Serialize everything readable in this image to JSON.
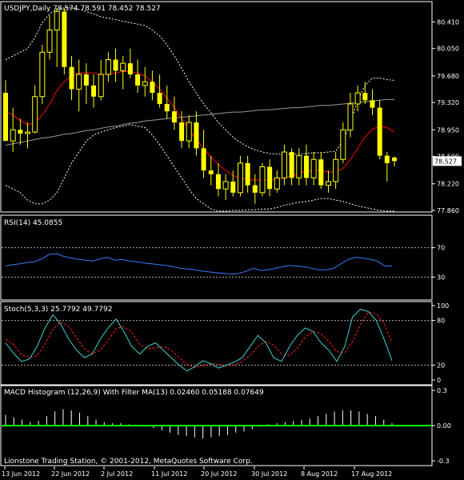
{
  "footer": "Lionstone Trading Station, © 2001-2012, MetaQuotes Software Corp.",
  "colors": {
    "candle": "#ffff00",
    "ma": "#ff0000",
    "ma_long": "#9a9a9a",
    "bollinger": "#ffffff",
    "rsi": "#3a78ff",
    "stoch_main": "#40d0d0",
    "stoch_signal": "#ff2020",
    "macd": "#ffffff",
    "macd_filter": "#00ff00",
    "current_price_bg": "#ffffff"
  },
  "chart_data": [
    {
      "type": "candlestick",
      "title": "USDJPY,Daily  78.574 78.591 78.452 78.527",
      "symbol": "USDJPY",
      "timeframe": "Daily",
      "ohlc_header": [
        78.574,
        78.591,
        78.452,
        78.527
      ],
      "current_price": "78.527",
      "ylim": [
        77.86,
        80.62
      ],
      "yticks": [
        "80.410",
        "80.050",
        "79.680",
        "79.320",
        "78.950",
        "78.590",
        "78.220",
        "77.860"
      ],
      "xticks": [
        "13 Jun 2012",
        "22 Jun 2012",
        "2 Jul 2012",
        "11 Jul 2012",
        "20 Jul 2012",
        "30 Jul 2012",
        "8 Aug 2012",
        "17 Aug 2012"
      ],
      "candles": [
        [
          79.45,
          79.62,
          78.8,
          78.8
        ],
        [
          78.8,
          79.25,
          78.65,
          78.95
        ],
        [
          78.95,
          79.1,
          78.75,
          78.9
        ],
        [
          78.9,
          79.05,
          78.7,
          78.92
        ],
        [
          78.92,
          79.55,
          78.9,
          79.4
        ],
        [
          79.4,
          80.1,
          79.3,
          80.0
        ],
        [
          80.0,
          80.5,
          79.9,
          80.3
        ],
        [
          80.3,
          80.6,
          79.8,
          80.55
        ],
        [
          80.55,
          80.6,
          79.7,
          79.8
        ],
        [
          79.8,
          79.95,
          79.35,
          79.5
        ],
        [
          79.5,
          79.9,
          79.2,
          79.7
        ],
        [
          79.7,
          79.85,
          79.3,
          79.55
        ],
        [
          79.55,
          79.7,
          79.25,
          79.4
        ],
        [
          79.4,
          79.9,
          79.35,
          79.7
        ],
        [
          79.7,
          80.0,
          79.6,
          79.9
        ],
        [
          79.9,
          80.05,
          79.6,
          79.75
        ],
        [
          79.75,
          79.95,
          79.5,
          79.85
        ],
        [
          79.85,
          80.05,
          79.65,
          79.7
        ],
        [
          79.7,
          79.9,
          79.45,
          79.55
        ],
        [
          79.55,
          79.8,
          79.4,
          79.6
        ],
        [
          79.6,
          79.75,
          79.35,
          79.45
        ],
        [
          79.45,
          79.7,
          79.25,
          79.3
        ],
        [
          79.3,
          79.55,
          79.1,
          79.2
        ],
        [
          79.2,
          79.4,
          78.95,
          79.05
        ],
        [
          79.05,
          79.2,
          78.7,
          78.8
        ],
        [
          78.8,
          79.15,
          78.7,
          79.05
        ],
        [
          79.05,
          79.2,
          78.6,
          78.7
        ],
        [
          78.7,
          78.95,
          78.3,
          78.4
        ],
        [
          78.4,
          78.6,
          78.2,
          78.35
        ],
        [
          78.35,
          78.5,
          78.05,
          78.15
        ],
        [
          78.15,
          78.35,
          78.0,
          78.25
        ],
        [
          78.25,
          78.4,
          78.05,
          78.1
        ],
        [
          78.1,
          78.6,
          78.05,
          78.5
        ],
        [
          78.5,
          78.6,
          78.1,
          78.2
        ],
        [
          78.2,
          78.35,
          77.95,
          78.1
        ],
        [
          78.1,
          78.5,
          78.05,
          78.45
        ],
        [
          78.45,
          78.55,
          78.05,
          78.15
        ],
        [
          78.15,
          78.4,
          78.1,
          78.3
        ],
        [
          78.3,
          78.75,
          78.2,
          78.65
        ],
        [
          78.65,
          78.7,
          78.2,
          78.3
        ],
        [
          78.3,
          78.7,
          78.2,
          78.6
        ],
        [
          78.6,
          78.75,
          78.2,
          78.3
        ],
        [
          78.3,
          78.65,
          78.2,
          78.55
        ],
        [
          78.55,
          78.65,
          78.15,
          78.2
        ],
        [
          78.2,
          78.4,
          78.1,
          78.25
        ],
        [
          78.25,
          78.65,
          78.15,
          78.55
        ],
        [
          78.55,
          79.05,
          78.5,
          78.95
        ],
        [
          78.95,
          79.45,
          78.85,
          79.3
        ],
        [
          79.3,
          79.55,
          79.2,
          79.45
        ],
        [
          79.45,
          79.6,
          79.3,
          79.35
        ],
        [
          79.35,
          79.5,
          79.15,
          79.25
        ],
        [
          79.25,
          79.35,
          78.55,
          78.6
        ],
        [
          78.6,
          78.65,
          78.25,
          78.5
        ],
        [
          78.574,
          78.591,
          78.452,
          78.527
        ]
      ],
      "ma_short": [
        79.2,
        79.15,
        79.08,
        79.02,
        79.05,
        79.15,
        79.3,
        79.48,
        79.6,
        79.68,
        79.72,
        79.72,
        79.72,
        79.7,
        79.7,
        79.72,
        79.74,
        79.74,
        79.72,
        79.68,
        79.6,
        79.5,
        79.38,
        79.25,
        79.1,
        78.95,
        78.82,
        78.7,
        78.58,
        78.48,
        78.4,
        78.33,
        78.3,
        78.28,
        78.27,
        78.27,
        78.27,
        78.28,
        78.3,
        78.33,
        78.36,
        78.39,
        78.4,
        78.4,
        78.38,
        78.38,
        78.43,
        78.55,
        78.7,
        78.85,
        78.96,
        79.0,
        78.98,
        78.92
      ],
      "ma_long": [
        78.74,
        78.76,
        78.78,
        78.8,
        78.82,
        78.84,
        78.85,
        78.87,
        78.89,
        78.9,
        78.92,
        78.94,
        78.95,
        78.97,
        78.99,
        79.0,
        79.02,
        79.04,
        79.05,
        79.07,
        79.08,
        79.09,
        79.1,
        79.11,
        79.12,
        79.13,
        79.14,
        79.15,
        79.16,
        79.17,
        79.18,
        79.19,
        79.19,
        79.2,
        79.21,
        79.22,
        79.22,
        79.23,
        79.24,
        79.25,
        79.25,
        79.26,
        79.27,
        79.28,
        79.28,
        79.29,
        79.3,
        79.31,
        79.32,
        79.33,
        79.34,
        79.35,
        79.36,
        79.36
      ],
      "bb_upper": [
        79.9,
        79.95,
        80.0,
        80.05,
        80.2,
        80.4,
        80.52,
        80.58,
        80.6,
        80.6,
        80.58,
        80.55,
        80.52,
        80.48,
        80.46,
        80.44,
        80.42,
        80.4,
        80.38,
        80.36,
        80.3,
        80.22,
        80.1,
        79.95,
        79.78,
        79.6,
        79.45,
        79.3,
        79.18,
        79.05,
        78.95,
        78.85,
        78.78,
        78.72,
        78.68,
        78.65,
        78.63,
        78.62,
        78.62,
        78.62,
        78.62,
        78.63,
        78.64,
        78.64,
        78.65,
        78.66,
        78.8,
        79.05,
        79.35,
        79.55,
        79.65,
        79.65,
        79.63,
        79.62
      ],
      "bb_lower": [
        78.2,
        78.15,
        78.1,
        78.0,
        77.95,
        77.95,
        78.0,
        78.1,
        78.3,
        78.5,
        78.65,
        78.8,
        78.88,
        78.92,
        78.95,
        78.98,
        79.0,
        79.02,
        79.0,
        78.98,
        78.88,
        78.75,
        78.6,
        78.45,
        78.3,
        78.15,
        78.02,
        77.95,
        77.88,
        77.85,
        77.85,
        77.86,
        77.86,
        77.87,
        77.87,
        77.88,
        77.88,
        77.9,
        77.93,
        77.95,
        77.97,
        77.98,
        78.0,
        78.02,
        78.02,
        78.0,
        77.98,
        77.95,
        77.92,
        77.9,
        77.88,
        77.86,
        77.85,
        77.85
      ]
    },
    {
      "type": "line",
      "title": "RSI(14) 45.0855",
      "ylim": [
        0,
        100
      ],
      "levels": [
        70,
        30
      ],
      "ytick_labels": [
        "70",
        "30"
      ],
      "series": [
        {
          "name": "RSI(14)",
          "values": [
            45.1,
            47,
            48,
            50,
            51,
            55,
            61,
            62,
            58,
            56,
            54,
            53,
            52,
            55,
            57,
            53,
            54,
            52,
            51,
            49,
            48,
            47,
            46,
            44,
            42,
            41,
            40,
            38,
            37,
            36,
            35,
            34,
            35,
            38,
            42,
            39,
            40,
            42,
            44,
            46,
            45,
            44,
            42,
            40,
            40,
            42,
            48,
            54,
            57,
            56,
            54,
            52,
            45,
            45.1
          ]
        }
      ]
    },
    {
      "type": "line",
      "title": "Stoch(5,3,3) 25.7792 49.7792",
      "ylim": [
        0,
        100
      ],
      "levels": [
        80,
        20
      ],
      "ytick_labels": [
        "100",
        "80",
        "20",
        "0"
      ],
      "series": [
        {
          "name": "main",
          "values": [
            50,
            36,
            25,
            28,
            45,
            70,
            88,
            75,
            55,
            40,
            30,
            35,
            55,
            70,
            82,
            65,
            45,
            35,
            45,
            50,
            40,
            30,
            20,
            12,
            18,
            26,
            22,
            16,
            20,
            24,
            30,
            45,
            60,
            50,
            30,
            25,
            45,
            60,
            70,
            65,
            50,
            40,
            25,
            45,
            85,
            95,
            92,
            80,
            55,
            26
          ]
        },
        {
          "name": "signal",
          "values": [
            55,
            48,
            34,
            30,
            33,
            48,
            68,
            78,
            72,
            57,
            42,
            35,
            40,
            53,
            69,
            72,
            64,
            48,
            42,
            43,
            45,
            40,
            30,
            21,
            17,
            19,
            22,
            21,
            19,
            20,
            25,
            33,
            45,
            52,
            47,
            35,
            33,
            43,
            58,
            65,
            62,
            52,
            38,
            37,
            52,
            75,
            91,
            89,
            76,
            50
          ]
        }
      ]
    },
    {
      "type": "bar",
      "title": "MACD Histogram (12,26,9) With Filter MA(13) 0.02460 0.05188 0.07649",
      "ylim": [
        -0.3,
        0.3
      ],
      "ytick_labels": [
        "0.3",
        "0.00",
        "-0.3"
      ],
      "values": [
        0.09,
        0.07,
        0.05,
        0.03,
        0.04,
        0.08,
        0.12,
        0.14,
        0.13,
        0.11,
        0.08,
        0.05,
        0.03,
        0.02,
        0.02,
        0.01,
        0.0,
        -0.01,
        -0.02,
        -0.04,
        -0.06,
        -0.08,
        -0.09,
        -0.1,
        -0.11,
        -0.1,
        -0.09,
        -0.08,
        -0.06,
        -0.05,
        -0.03,
        -0.01,
        0.01,
        0.02,
        0.03,
        0.04,
        0.05,
        0.06,
        0.08,
        0.1,
        0.12,
        0.13,
        0.13,
        0.12,
        0.1,
        0.08,
        0.05,
        0.02
      ],
      "filter_value": 0.0
    }
  ]
}
